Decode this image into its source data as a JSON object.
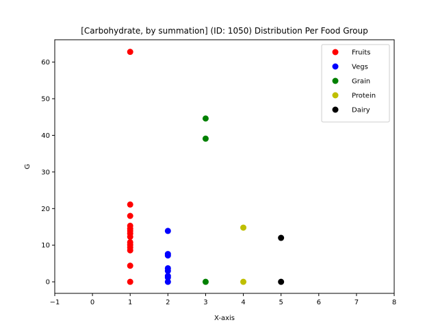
{
  "chart_data": {
    "type": "scatter",
    "title": "[Carbohydrate, by summation] (ID: 1050) Distribution Per Food Group",
    "xlabel": "X-axis",
    "ylabel": "G",
    "xlim": [
      -1,
      8
    ],
    "ylim": [
      -3.15,
      66.1
    ],
    "xticks": [
      -1,
      0,
      1,
      2,
      3,
      4,
      5,
      6,
      7,
      8
    ],
    "yticks": [
      0,
      10,
      20,
      30,
      40,
      50,
      60
    ],
    "grid": false,
    "legend_position": "top-right",
    "series": [
      {
        "name": "Fruits",
        "color": "#ff0000",
        "points": [
          {
            "x": 1,
            "y": 62.8
          },
          {
            "x": 1,
            "y": 21.1
          },
          {
            "x": 1,
            "y": 18.0
          },
          {
            "x": 1,
            "y": 15.3
          },
          {
            "x": 1,
            "y": 14.5
          },
          {
            "x": 1,
            "y": 13.9
          },
          {
            "x": 1,
            "y": 13.2
          },
          {
            "x": 1,
            "y": 12.3
          },
          {
            "x": 1,
            "y": 10.8
          },
          {
            "x": 1,
            "y": 10.1
          },
          {
            "x": 1,
            "y": 9.4
          },
          {
            "x": 1,
            "y": 8.6
          },
          {
            "x": 1,
            "y": 4.4
          },
          {
            "x": 1,
            "y": 0
          }
        ]
      },
      {
        "name": "Vegs",
        "color": "#0000ff",
        "points": [
          {
            "x": 2,
            "y": 13.9
          },
          {
            "x": 2,
            "y": 7.6
          },
          {
            "x": 2,
            "y": 7.2
          },
          {
            "x": 2,
            "y": 3.7
          },
          {
            "x": 2,
            "y": 3.0
          },
          {
            "x": 2,
            "y": 1.6
          },
          {
            "x": 2,
            "y": 1.2
          },
          {
            "x": 2,
            "y": 0
          }
        ]
      },
      {
        "name": "Grain",
        "color": "#008000",
        "points": [
          {
            "x": 3,
            "y": 44.6
          },
          {
            "x": 3,
            "y": 39.1
          },
          {
            "x": 3,
            "y": 0
          }
        ]
      },
      {
        "name": "Protein",
        "color": "#bfbf00",
        "points": [
          {
            "x": 4,
            "y": 14.8
          },
          {
            "x": 4,
            "y": 0
          }
        ]
      },
      {
        "name": "Dairy",
        "color": "#000000",
        "points": [
          {
            "x": 5,
            "y": 12.0
          },
          {
            "x": 5,
            "y": 0
          }
        ]
      }
    ]
  }
}
